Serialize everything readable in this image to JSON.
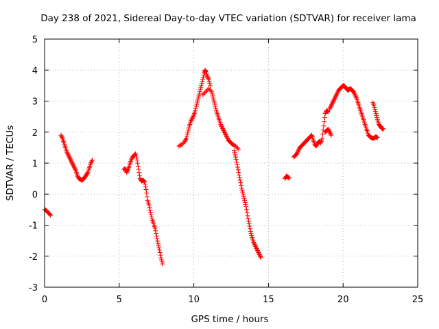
{
  "chart_data": {
    "type": "scatter",
    "title": "Day 238 of 2021, Sidereal Day-to-day VTEC variation (SDTVAR) for receiver lama",
    "xlabel": "GPS time / hours",
    "ylabel": "SDTVAR / TECUs",
    "xlim": [
      0,
      25
    ],
    "ylim": [
      -3,
      5
    ],
    "xticks": [
      "0",
      "5",
      "10",
      "15",
      "20",
      "25"
    ],
    "yticks": [
      "-3",
      "-2",
      "-1",
      "0",
      "1",
      "2",
      "3",
      "4",
      "5"
    ],
    "grid": true,
    "marker": "+",
    "color": "#ff0000",
    "series": [
      {
        "points": [
          [
            0.0,
            -0.5
          ],
          [
            0.1,
            -0.52
          ],
          [
            0.2,
            -0.58
          ],
          [
            0.3,
            -0.62
          ],
          [
            0.4,
            -0.68
          ]
        ]
      },
      {
        "points": [
          [
            1.1,
            1.9
          ],
          [
            1.2,
            1.8
          ],
          [
            1.3,
            1.65
          ],
          [
            1.4,
            1.5
          ],
          [
            1.5,
            1.35
          ],
          [
            1.6,
            1.25
          ],
          [
            1.7,
            1.15
          ],
          [
            1.8,
            1.05
          ],
          [
            1.9,
            0.95
          ],
          [
            2.0,
            0.85
          ],
          [
            2.1,
            0.75
          ],
          [
            2.2,
            0.6
          ],
          [
            2.3,
            0.5
          ],
          [
            2.4,
            0.48
          ],
          [
            2.5,
            0.45
          ],
          [
            2.6,
            0.48
          ],
          [
            2.7,
            0.55
          ],
          [
            2.8,
            0.62
          ],
          [
            2.9,
            0.7
          ],
          [
            3.0,
            0.85
          ],
          [
            3.1,
            1.0
          ],
          [
            3.2,
            1.1
          ]
        ]
      },
      {
        "points": [
          [
            5.3,
            0.8
          ],
          [
            5.4,
            0.82
          ],
          [
            5.5,
            0.7
          ],
          [
            5.6,
            0.8
          ],
          [
            5.7,
            0.95
          ],
          [
            5.8,
            1.1
          ],
          [
            5.9,
            1.2
          ],
          [
            6.0,
            1.25
          ],
          [
            6.1,
            1.3
          ],
          [
            6.2,
            1.1
          ],
          [
            6.3,
            0.8
          ],
          [
            6.4,
            0.5
          ],
          [
            6.5,
            0.42
          ],
          [
            6.6,
            0.45
          ],
          [
            6.7,
            0.4
          ],
          [
            6.8,
            0.15
          ],
          [
            6.9,
            -0.2
          ],
          [
            7.0,
            -0.35
          ],
          [
            7.1,
            -0.6
          ],
          [
            7.2,
            -0.8
          ],
          [
            7.3,
            -0.95
          ],
          [
            7.4,
            -1.1
          ],
          [
            7.5,
            -1.35
          ],
          [
            7.6,
            -1.6
          ],
          [
            7.7,
            -1.8
          ],
          [
            7.8,
            -2.05
          ],
          [
            7.9,
            -2.25
          ]
        ]
      },
      {
        "points": [
          [
            9.0,
            1.55
          ],
          [
            9.2,
            1.6
          ],
          [
            9.4,
            1.7
          ],
          [
            9.5,
            1.8
          ],
          [
            9.6,
            2.0
          ],
          [
            9.7,
            2.2
          ],
          [
            9.8,
            2.35
          ],
          [
            9.9,
            2.45
          ],
          [
            10.0,
            2.55
          ],
          [
            10.1,
            2.7
          ],
          [
            10.2,
            2.9
          ],
          [
            10.3,
            3.1
          ],
          [
            10.4,
            3.3
          ],
          [
            10.5,
            3.5
          ],
          [
            10.6,
            3.7
          ],
          [
            10.7,
            3.9
          ],
          [
            10.75,
            4.0
          ],
          [
            10.8,
            3.95
          ],
          [
            10.9,
            3.8
          ],
          [
            11.0,
            3.7
          ],
          [
            11.1,
            3.5
          ],
          [
            10.6,
            3.2
          ],
          [
            10.8,
            3.3
          ],
          [
            11.0,
            3.4
          ],
          [
            11.2,
            3.3
          ],
          [
            11.3,
            3.1
          ],
          [
            11.4,
            2.9
          ],
          [
            11.5,
            2.7
          ],
          [
            11.6,
            2.55
          ],
          [
            11.7,
            2.4
          ],
          [
            11.8,
            2.25
          ],
          [
            11.9,
            2.15
          ],
          [
            12.0,
            2.05
          ],
          [
            12.1,
            1.95
          ],
          [
            12.2,
            1.85
          ],
          [
            12.3,
            1.75
          ],
          [
            12.4,
            1.7
          ],
          [
            12.5,
            1.65
          ],
          [
            12.6,
            1.6
          ],
          [
            12.8,
            1.55
          ],
          [
            13.0,
            1.45
          ],
          [
            12.7,
            1.4
          ],
          [
            12.8,
            1.2
          ],
          [
            12.9,
            0.95
          ],
          [
            13.0,
            0.7
          ],
          [
            13.1,
            0.45
          ],
          [
            13.2,
            0.2
          ],
          [
            13.3,
            0.0
          ],
          [
            13.4,
            -0.2
          ],
          [
            13.5,
            -0.4
          ],
          [
            13.6,
            -0.7
          ],
          [
            13.7,
            -0.95
          ],
          [
            13.8,
            -1.2
          ],
          [
            13.9,
            -1.4
          ],
          [
            14.0,
            -1.55
          ],
          [
            14.1,
            -1.65
          ],
          [
            14.2,
            -1.75
          ],
          [
            14.3,
            -1.85
          ],
          [
            14.4,
            -1.95
          ],
          [
            14.5,
            -2.05
          ]
        ]
      },
      {
        "points": [
          [
            16.1,
            0.5
          ],
          [
            16.2,
            0.58
          ],
          [
            16.3,
            0.55
          ],
          [
            16.4,
            0.52
          ]
        ]
      },
      {
        "points": [
          [
            16.7,
            1.2
          ],
          [
            16.8,
            1.25
          ],
          [
            16.9,
            1.3
          ],
          [
            17.0,
            1.4
          ],
          [
            17.1,
            1.5
          ],
          [
            17.2,
            1.55
          ],
          [
            17.3,
            1.6
          ],
          [
            17.4,
            1.65
          ],
          [
            17.5,
            1.7
          ],
          [
            17.6,
            1.75
          ],
          [
            17.7,
            1.8
          ],
          [
            17.8,
            1.85
          ],
          [
            17.9,
            1.9
          ],
          [
            18.0,
            1.75
          ],
          [
            18.1,
            1.6
          ],
          [
            18.2,
            1.55
          ],
          [
            18.3,
            1.65
          ],
          [
            18.4,
            1.7
          ],
          [
            18.5,
            1.65
          ],
          [
            18.6,
            1.8
          ],
          [
            18.7,
            2.2
          ],
          [
            18.8,
            2.6
          ],
          [
            18.9,
            2.7
          ],
          [
            19.0,
            2.65
          ],
          [
            18.8,
            2.0
          ],
          [
            18.9,
            2.05
          ],
          [
            19.0,
            2.1
          ],
          [
            19.1,
            2.0
          ],
          [
            19.2,
            1.9
          ],
          [
            19.1,
            2.75
          ],
          [
            19.2,
            2.85
          ],
          [
            19.3,
            2.95
          ],
          [
            19.4,
            3.05
          ],
          [
            19.5,
            3.15
          ],
          [
            19.6,
            3.25
          ],
          [
            19.7,
            3.35
          ],
          [
            19.8,
            3.4
          ],
          [
            19.9,
            3.45
          ],
          [
            20.0,
            3.5
          ],
          [
            20.1,
            3.48
          ],
          [
            20.2,
            3.42
          ],
          [
            20.3,
            3.35
          ],
          [
            20.4,
            3.38
          ],
          [
            20.5,
            3.4
          ],
          [
            20.6,
            3.35
          ],
          [
            20.7,
            3.3
          ],
          [
            20.8,
            3.2
          ],
          [
            20.9,
            3.1
          ],
          [
            21.0,
            2.95
          ],
          [
            21.1,
            2.8
          ],
          [
            21.2,
            2.65
          ],
          [
            21.3,
            2.5
          ],
          [
            21.4,
            2.35
          ],
          [
            21.5,
            2.2
          ],
          [
            21.6,
            2.05
          ],
          [
            21.7,
            1.9
          ],
          [
            21.8,
            1.85
          ],
          [
            21.9,
            1.82
          ],
          [
            22.0,
            1.8
          ],
          [
            22.1,
            1.82
          ],
          [
            22.2,
            1.85
          ],
          [
            22.3,
            1.82
          ]
        ]
      },
      {
        "points": [
          [
            22.0,
            2.95
          ],
          [
            22.1,
            2.8
          ],
          [
            22.2,
            2.6
          ],
          [
            22.3,
            2.4
          ],
          [
            22.4,
            2.25
          ],
          [
            22.5,
            2.18
          ],
          [
            22.6,
            2.12
          ],
          [
            22.7,
            2.1
          ]
        ]
      }
    ]
  }
}
